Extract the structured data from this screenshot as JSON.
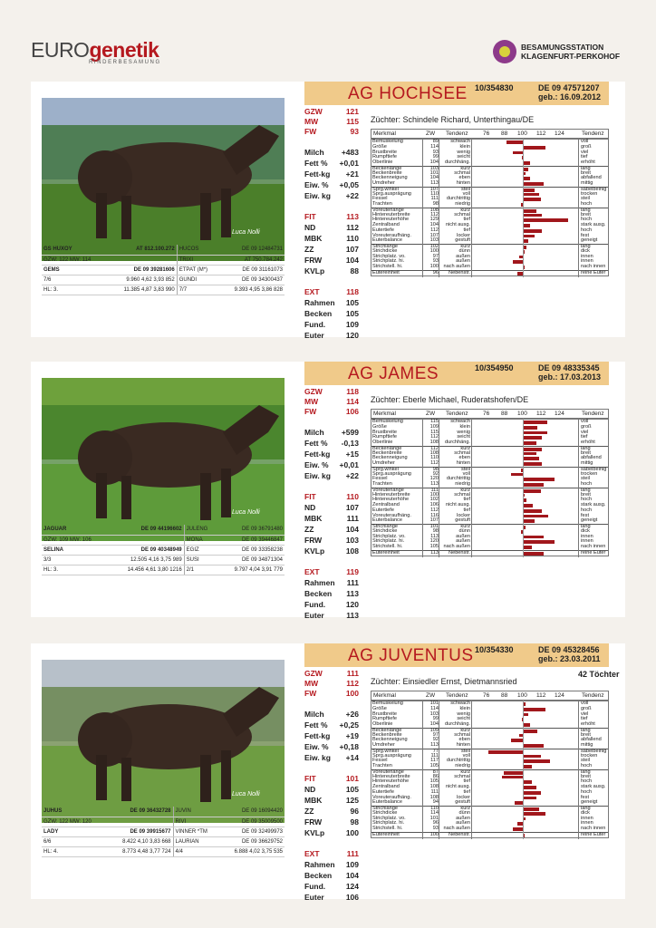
{
  "header": {
    "logo_main": "EURO",
    "logo_accent": "genetik",
    "logo_sub": "RINDERBESAMUNG",
    "station_l1": "BESAMUNGSSTATION",
    "station_l2": "KLAGENFURT-PERKOHOF"
  },
  "axis": {
    "merkmal": "Merkmal",
    "zw": "ZW",
    "tendenz": "Tendenz",
    "t76": "76",
    "t88": "88",
    "t100": "100",
    "t112": "112",
    "t124": "124",
    "tendenz2": "Tendenz"
  },
  "labels": [
    "GZW",
    "MW",
    "FW",
    "Milch",
    "Fett %",
    "Fett-kg",
    "Eiw. %",
    "Eiw. kg",
    "FIT",
    "ND",
    "MBK",
    "ZZ",
    "FRW",
    "KVLp",
    "EXT",
    "Rahmen",
    "Becken",
    "Fund.",
    "Euter"
  ],
  "traits": [
    [
      "Bemuskelung",
      "schwach",
      "voll"
    ],
    [
      "Größe",
      "klein",
      "groß"
    ],
    [
      "Brustbreite",
      "wenig",
      "viel"
    ],
    [
      "Rumpftiefe",
      "seicht",
      "tief"
    ],
    [
      "Oberlinie",
      "durchhäng.",
      "erhöht"
    ],
    [
      "Beckenlänge",
      "kurz",
      "lang"
    ],
    [
      "Beckenbreite",
      "schmal",
      "breit"
    ],
    [
      "Beckenneigung",
      "eben",
      "abfallend"
    ],
    [
      "Umdreher",
      "hinten",
      "mittig"
    ],
    [
      "Sprg.winkel",
      "steil",
      "säbelbeinig"
    ],
    [
      "Sprg.ausprägung",
      "voll",
      "trocken"
    ],
    [
      "Fessel",
      "durchtrittig",
      "steil"
    ],
    [
      "Trachten",
      "niedrig",
      "hoch"
    ],
    [
      "Voreuterlänge",
      "kurz",
      "lang"
    ],
    [
      "Hintereuterbreite",
      "schmal",
      "breit"
    ],
    [
      "Hintereuterhöhe",
      "tief",
      "hoch"
    ],
    [
      "Zentralband",
      "nicht ausg.",
      "stark ausg."
    ],
    [
      "Eutertiefe",
      "tief",
      "hoch"
    ],
    [
      "Voreuteraufhäng.",
      "locker",
      "fest"
    ],
    [
      "Euterbalance",
      "gestuft",
      "geneigt"
    ],
    [
      "Strichlänge",
      "kurz",
      "lang"
    ],
    [
      "Strichdicke",
      "dünn",
      "dick"
    ],
    [
      "Strichplatz. vo.",
      "außen",
      "innen"
    ],
    [
      "Strichplatz. hi.",
      "außen",
      "innen"
    ],
    [
      "Strichstell. hi.",
      "nach außen",
      "nach innen"
    ],
    [
      "Eutereinheit",
      "Nebenstr.",
      "reine Euter"
    ]
  ],
  "bulls": [
    {
      "name": "AG HOCHSEE",
      "reg": "10/354830",
      "de": "DE 09 47571207",
      "geb": "geb.: 16.09.2012",
      "toechter": "",
      "photo_credit": "Luca Nolli",
      "zuechter": "Züchter: Schindele Richard, Unterthingau/DE",
      "idx": [
        "121",
        "115",
        "93",
        "+483",
        "+0,01",
        "+21",
        "+0,05",
        "+22",
        "113",
        "112",
        "110",
        "107",
        "104",
        "88",
        "118",
        "105",
        "105",
        "109",
        "120"
      ],
      "zw": [
        89,
        114,
        93,
        99,
        104,
        103,
        101,
        104,
        113,
        107,
        110,
        111,
        98,
        108,
        112,
        129,
        104,
        112,
        107,
        103,
        102,
        100,
        97,
        93,
        100,
        96
      ],
      "ped": [
        [
          "GS HUXOY",
          "AT 812.100.272",
          "HUCOS",
          "DE 09 12484731"
        ],
        [
          "GZW: 122   MW: 114",
          "",
          "TRIXI",
          "AT 750.784.242"
        ],
        [
          "GEMS",
          "DE 09 39281606",
          "ETPAT (M*)",
          "DE 09 31161073"
        ],
        [
          "7/6",
          "9.960 4,62 3,93 852",
          "GUNDI",
          "DE 09 34300437"
        ],
        [
          "HL: 3.",
          "11.385 4,87 3,83 990",
          "7/7",
          "9.393 4,95 3,86 828"
        ]
      ]
    },
    {
      "name": "AG JAMES",
      "reg": "10/354950",
      "de": "DE 09 48335345",
      "geb": "geb.: 17.03.2013",
      "toechter": "",
      "photo_credit": "Luca Nolli",
      "zuechter": "Züchter: Eberle Michael, Ruderatshofen/DE",
      "idx": [
        "118",
        "114",
        "106",
        "+599",
        "-0,13",
        "+15",
        "+0,01",
        "+22",
        "110",
        "107",
        "111",
        "104",
        "103",
        "108",
        "119",
        "111",
        "113",
        "120",
        "113"
      ],
      "zw": [
        115,
        109,
        115,
        112,
        108,
        112,
        108,
        110,
        112,
        98,
        92,
        120,
        113,
        111,
        100,
        102,
        106,
        112,
        116,
        107,
        101,
        98,
        113,
        120,
        105,
        113
      ],
      "ped": [
        [
          "JAGUAR",
          "DE 09 44196602",
          "JULENG",
          "DE 09 36791480"
        ],
        [
          "GZW: 109   MW: 106",
          "",
          "MONA",
          "DE 09 39446847"
        ],
        [
          "SELINA",
          "DE 09 40348949",
          "EGIZ",
          "DE 09 33358238"
        ],
        [
          "3/3",
          "12.505 4,16 3,75 989",
          "SUSI",
          "DE 09 34871304"
        ],
        [
          "HL: 3.",
          "14.456 4,61 3,80 1216",
          "2/1",
          "9.797 4,04 3,91 779"
        ]
      ]
    },
    {
      "name": "AG JUVENTUS",
      "reg": "10/354330",
      "de": "DE 09 45328456",
      "geb": "geb.: 23.03.2011",
      "toechter": "42 Töchter",
      "photo_credit": "Luca Nolli",
      "zuechter": "Züchter: Einsiedler Ernst, Dietmannsried",
      "idx": [
        "111",
        "112",
        "100",
        "+26",
        "+0,25",
        "+19",
        "+0,18",
        "+14",
        "101",
        "105",
        "125",
        "96",
        "98",
        "100",
        "111",
        "109",
        "104",
        "124",
        "106"
      ],
      "zw": [
        101,
        114,
        103,
        99,
        104,
        109,
        97,
        92,
        113,
        77,
        111,
        117,
        105,
        87,
        86,
        105,
        108,
        111,
        108,
        94,
        110,
        114,
        101,
        96,
        93,
        100
      ],
      "ped": [
        [
          "JUHUS",
          "DE 09 36432728",
          "JUVIN",
          "DE 09 16094420"
        ],
        [
          "GZW: 122   MW: 120",
          "",
          "RIVI",
          "DE 09 35009500"
        ],
        [
          "LADY",
          "DE 09 39915677",
          "VINNER *TM",
          "DE 09 32499973"
        ],
        [
          "6/6",
          "8.422 4,10 3,83 668",
          "LAURIAN",
          "DE 09 36629752"
        ],
        [
          "HL: 4.",
          "8.773 4,48 3,77 724",
          "4/4",
          "6.888 4,02 3,75 535"
        ]
      ]
    }
  ]
}
